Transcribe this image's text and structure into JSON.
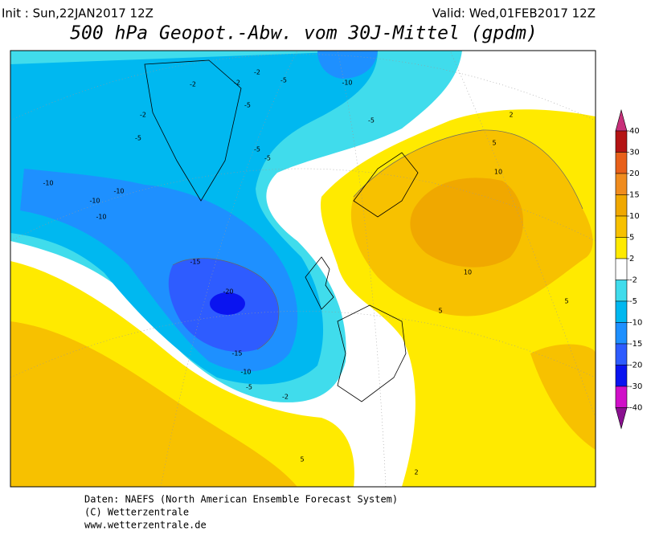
{
  "header": {
    "init": "Init : Sun,22JAN2017 12Z",
    "valid": "Valid: Wed,01FEB2017 12Z",
    "title": "500 hPa Geopot.-Abw. vom 30J-Mittel (gpdm)"
  },
  "legend": {
    "labels": [
      "40",
      "30",
      "20",
      "15",
      "10",
      "5",
      "2",
      "-2",
      "-5",
      "-10",
      "-15",
      "-20",
      "-30",
      "-40"
    ],
    "colors": [
      "#c8307a",
      "#b41414",
      "#e8601a",
      "#f08c1e",
      "#f0a800",
      "#f7c100",
      "#ffea00",
      "#ffffff",
      "#40dcec",
      "#00b8f0",
      "#1e90ff",
      "#2e5cff",
      "#0a14f0",
      "#d010c8",
      "#8a1090"
    ]
  },
  "map": {
    "contour_labels": [
      "-2",
      "-2",
      "-5",
      "-10",
      "-5",
      "-5",
      "-5",
      "-5",
      "-5",
      "-2",
      "-10",
      "-10",
      "-10",
      "-10",
      "-15",
      "-20",
      "-15",
      "-10",
      "-5",
      "-2",
      "5",
      "10",
      "10",
      "5",
      "2",
      "5",
      "2",
      "5",
      "-2"
    ]
  },
  "footer": {
    "lines": [
      "Daten: NAEFS (North American Ensemble Forecast System)",
      "(C) Wetterzentrale",
      "www.wetterzentrale.de"
    ]
  }
}
